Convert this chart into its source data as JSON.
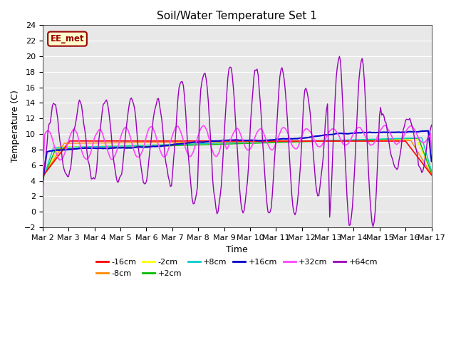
{
  "title": "Soil/Water Temperature Set 1",
  "xlabel": "Time",
  "ylabel": "Temperature (C)",
  "ylim": [
    -2,
    24
  ],
  "yticks": [
    -2,
    0,
    2,
    4,
    6,
    8,
    10,
    12,
    14,
    16,
    18,
    20,
    22,
    24
  ],
  "xtick_labels": [
    "Mar 2",
    "Mar 3",
    "Mar 4",
    "Mar 5",
    "Mar 6",
    "Mar 7",
    "Mar 8",
    "Mar 9",
    "Mar 10",
    "Mar 11",
    "Mar 12",
    "Mar 13",
    "Mar 14",
    "Mar 15",
    "Mar 16",
    "Mar 17"
  ],
  "series_colors": {
    "-16cm": "#ff0000",
    "-8cm": "#ff8800",
    "-2cm": "#ffff00",
    "+2cm": "#00bb00",
    "+8cm": "#00cccc",
    "+16cm": "#0000cc",
    "+32cm": "#ff44ff",
    "+64cm": "#9900bb"
  },
  "bg_color": "#e8e8e8",
  "annotation_text": "EE_met",
  "annotation_bg": "#ffffcc",
  "annotation_border": "#990000"
}
